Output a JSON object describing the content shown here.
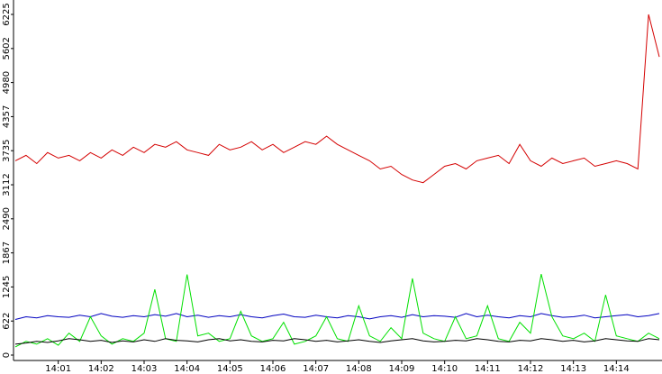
{
  "chart_data": {
    "type": "line",
    "categories": [
      null,
      null,
      null,
      null,
      "14:01",
      null,
      null,
      null,
      "14:02",
      null,
      null,
      null,
      "14:03",
      null,
      null,
      null,
      "14:04",
      null,
      null,
      null,
      "14:05",
      null,
      null,
      null,
      "14:06",
      null,
      null,
      null,
      "14:07",
      null,
      null,
      null,
      "14:08",
      null,
      null,
      null,
      "14:09",
      null,
      null,
      null,
      "14:10",
      null,
      null,
      null,
      "14:11",
      null,
      null,
      null,
      "14:12",
      null,
      null,
      null,
      "14:13",
      null,
      null,
      null,
      "14:14",
      null,
      null,
      null,
      null
    ],
    "series": [
      {
        "color": "#d40000",
        "values": [
          3550,
          3650,
          3500,
          3700,
          3600,
          3650,
          3550,
          3700,
          3600,
          3750,
          3650,
          3800,
          3700,
          3850,
          3800,
          3900,
          3750,
          3700,
          3650,
          3850,
          3750,
          3800,
          3900,
          3750,
          3850,
          3700,
          3800,
          3900,
          3850,
          4000,
          3850,
          3750,
          3650,
          3550,
          3400,
          3450,
          3300,
          3200,
          3150,
          3300,
          3450,
          3500,
          3400,
          3550,
          3600,
          3650,
          3500,
          3850,
          3550,
          3450,
          3600,
          3500,
          3550,
          3600,
          3450,
          3500,
          3550,
          3500,
          3400,
          6225,
          5450
        ]
      },
      {
        "color": "#0000c0",
        "values": [
          650,
          700,
          680,
          720,
          700,
          690,
          730,
          700,
          760,
          710,
          690,
          720,
          700,
          740,
          710,
          760,
          700,
          730,
          690,
          720,
          700,
          740,
          700,
          680,
          720,
          750,
          700,
          690,
          730,
          700,
          680,
          720,
          700,
          660,
          700,
          720,
          690,
          740,
          700,
          720,
          710,
          690,
          760,
          700,
          730,
          700,
          680,
          720,
          700,
          760,
          720,
          690,
          700,
          730,
          680,
          700,
          720,
          740,
          700,
          720,
          760
        ]
      },
      {
        "color": "#00e000",
        "values": [
          150,
          250,
          200,
          300,
          180,
          400,
          250,
          700,
          350,
          200,
          300,
          250,
          400,
          1200,
          300,
          250,
          1473,
          350,
          400,
          250,
          300,
          800,
          350,
          250,
          300,
          600,
          200,
          250,
          350,
          700,
          300,
          250,
          900,
          350,
          250,
          500,
          300,
          1400,
          400,
          300,
          250,
          700,
          300,
          350,
          900,
          300,
          250,
          600,
          400,
          1480,
          700,
          350,
          300,
          400,
          250,
          1100,
          350,
          300,
          250,
          400,
          300
        ]
      },
      {
        "color": "#000000",
        "values": [
          200,
          220,
          250,
          230,
          260,
          300,
          280,
          250,
          270,
          230,
          260,
          240,
          280,
          250,
          300,
          270,
          260,
          240,
          280,
          300,
          260,
          280,
          250,
          240,
          270,
          260,
          300,
          280,
          250,
          270,
          240,
          260,
          280,
          250,
          230,
          260,
          280,
          300,
          260,
          240,
          250,
          270,
          260,
          300,
          280,
          250,
          240,
          270,
          260,
          300,
          280,
          250,
          270,
          240,
          260,
          300,
          280,
          260,
          250,
          300,
          280
        ]
      }
    ],
    "ylim": [
      0,
      6225
    ],
    "yticks": [
      0,
      622,
      1245,
      1867,
      2490,
      3112,
      3735,
      4357,
      4980,
      5602,
      6225
    ]
  }
}
